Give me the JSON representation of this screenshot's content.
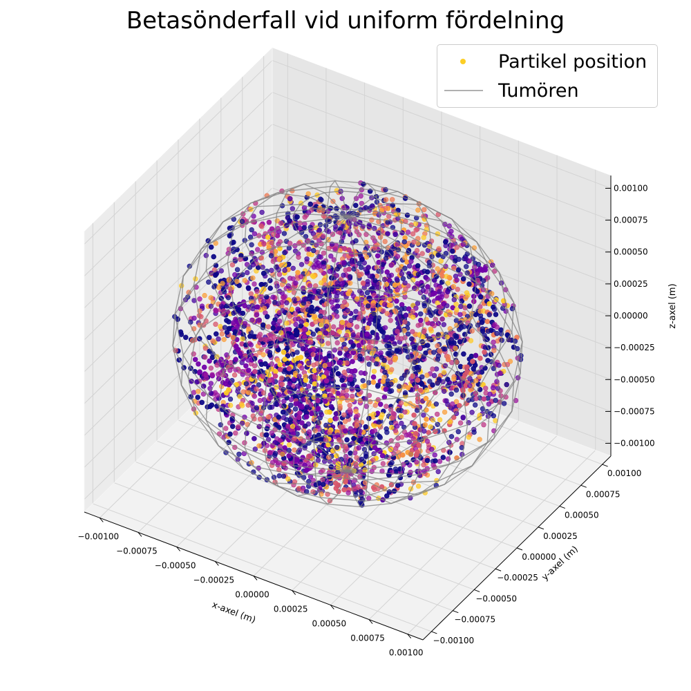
{
  "chart_data": {
    "type": "scatter",
    "projection": "3d",
    "title": "Betasönderfall vid uniform fördelning",
    "xlabel": "x-axel (m)",
    "ylabel": "y-axel (m)",
    "zlabel": "z-axel (m)",
    "xlim": [
      -0.0011,
      0.0011
    ],
    "ylim": [
      -0.0011,
      0.0011
    ],
    "zlim": [
      -0.0011,
      0.0011
    ],
    "xticks": [
      "−0.00100",
      "−0.00075",
      "−0.00050",
      "−0.00025",
      "0.00000",
      "0.00025",
      "0.00050",
      "0.00075",
      "0.00100"
    ],
    "yticks": [
      "−0.00100",
      "−0.00075",
      "−0.00050",
      "−0.00025",
      "0.00000",
      "0.00025",
      "0.00050",
      "0.00075",
      "0.00100"
    ],
    "zticks": [
      "−0.00100",
      "−0.00075",
      "−0.00050",
      "−0.00025",
      "0.00000",
      "0.00025",
      "0.00050",
      "0.00075",
      "0.00100"
    ],
    "grid": true,
    "colormap": "plasma",
    "legend_position": "top-right",
    "series": [
      {
        "name": "Partikel position",
        "kind": "scatter",
        "color": "#fcce25",
        "description_of_values": "particle tracks of random-walk style inside sphere; colored by step (dark purple to yellow)"
      },
      {
        "name": "Tumören",
        "kind": "wireframe-sphere",
        "color": "#808080",
        "radius": 0.001
      }
    ]
  },
  "colors": {
    "plasma": [
      "#0d0887",
      "#46039f",
      "#7201a8",
      "#9c179e",
      "#bd3786",
      "#d8576b",
      "#ed7953",
      "#fb9f3a",
      "#fdca26"
    ],
    "pane": "#f2f2f2",
    "grid": "#d3d3d3",
    "wire": "#808080"
  }
}
